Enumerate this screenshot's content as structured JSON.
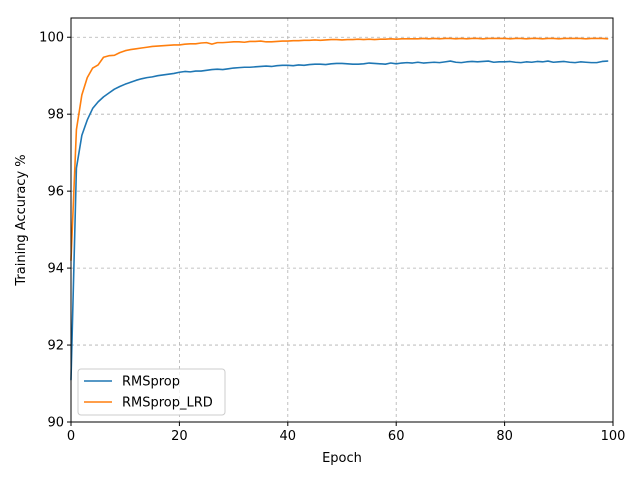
{
  "chart_data": {
    "type": "line",
    "title": "",
    "xlabel": "Epoch",
    "ylabel": "Training Accuracy %",
    "xlim": [
      0,
      100
    ],
    "ylim": [
      90,
      100.5
    ],
    "xticks": [
      0,
      20,
      40,
      60,
      80,
      100
    ],
    "yticks": [
      90,
      92,
      94,
      96,
      98,
      100
    ],
    "grid": true,
    "legend_position": "lower-left",
    "series": [
      {
        "name": "RMSprop",
        "color": "#1f77b4",
        "x": [
          0,
          1,
          2,
          3,
          4,
          5,
          6,
          7,
          8,
          9,
          10,
          11,
          12,
          13,
          14,
          15,
          16,
          17,
          18,
          19,
          20,
          21,
          22,
          23,
          24,
          25,
          26,
          27,
          28,
          29,
          30,
          31,
          32,
          33,
          34,
          35,
          36,
          37,
          38,
          39,
          40,
          41,
          42,
          43,
          44,
          45,
          46,
          47,
          48,
          49,
          50,
          51,
          52,
          53,
          54,
          55,
          56,
          57,
          58,
          59,
          60,
          61,
          62,
          63,
          64,
          65,
          66,
          67,
          68,
          69,
          70,
          71,
          72,
          73,
          74,
          75,
          76,
          77,
          78,
          79,
          80,
          81,
          82,
          83,
          84,
          85,
          86,
          87,
          88,
          89,
          90,
          91,
          92,
          93,
          94,
          95,
          96,
          97,
          98,
          99
        ],
        "y": [
          91.1,
          96.6,
          97.45,
          97.85,
          98.15,
          98.32,
          98.45,
          98.55,
          98.65,
          98.72,
          98.78,
          98.83,
          98.88,
          98.92,
          98.95,
          98.97,
          99.0,
          99.02,
          99.04,
          99.06,
          99.09,
          99.11,
          99.1,
          99.12,
          99.12,
          99.14,
          99.16,
          99.17,
          99.16,
          99.18,
          99.2,
          99.21,
          99.22,
          99.22,
          99.23,
          99.24,
          99.25,
          99.24,
          99.26,
          99.27,
          99.27,
          99.26,
          99.28,
          99.27,
          99.29,
          99.3,
          99.3,
          99.29,
          99.31,
          99.32,
          99.32,
          99.31,
          99.3,
          99.3,
          99.31,
          99.33,
          99.32,
          99.31,
          99.3,
          99.33,
          99.31,
          99.33,
          99.34,
          99.33,
          99.35,
          99.33,
          99.34,
          99.35,
          99.34,
          99.36,
          99.38,
          99.35,
          99.34,
          99.36,
          99.37,
          99.36,
          99.37,
          99.38,
          99.35,
          99.36,
          99.36,
          99.37,
          99.35,
          99.34,
          99.36,
          99.35,
          99.37,
          99.36,
          99.38,
          99.35,
          99.36,
          99.37,
          99.35,
          99.34,
          99.36,
          99.35,
          99.34,
          99.34,
          99.37,
          99.38
        ]
      },
      {
        "name": "RMSprop_LRD",
        "color": "#ff7f0e",
        "x": [
          0,
          1,
          2,
          3,
          4,
          5,
          6,
          7,
          8,
          9,
          10,
          11,
          12,
          13,
          14,
          15,
          16,
          17,
          18,
          19,
          20,
          21,
          22,
          23,
          24,
          25,
          26,
          27,
          28,
          29,
          30,
          31,
          32,
          33,
          34,
          35,
          36,
          37,
          38,
          39,
          40,
          41,
          42,
          43,
          44,
          45,
          46,
          47,
          48,
          49,
          50,
          51,
          52,
          53,
          54,
          55,
          56,
          57,
          58,
          59,
          60,
          61,
          62,
          63,
          64,
          65,
          66,
          67,
          68,
          69,
          70,
          71,
          72,
          73,
          74,
          75,
          76,
          77,
          78,
          79,
          80,
          81,
          82,
          83,
          84,
          85,
          86,
          87,
          88,
          89,
          90,
          91,
          92,
          93,
          94,
          95,
          96,
          97,
          98,
          99
        ],
        "y": [
          94.2,
          97.6,
          98.5,
          98.95,
          99.2,
          99.28,
          99.48,
          99.52,
          99.53,
          99.6,
          99.65,
          99.68,
          99.7,
          99.72,
          99.74,
          99.76,
          99.77,
          99.78,
          99.79,
          99.8,
          99.8,
          99.82,
          99.83,
          99.83,
          99.85,
          99.86,
          99.82,
          99.86,
          99.86,
          99.87,
          99.88,
          99.88,
          99.87,
          99.89,
          99.89,
          99.9,
          99.88,
          99.88,
          99.89,
          99.9,
          99.9,
          99.91,
          99.91,
          99.92,
          99.92,
          99.93,
          99.92,
          99.93,
          99.94,
          99.94,
          99.93,
          99.94,
          99.94,
          99.95,
          99.94,
          99.95,
          99.94,
          99.95,
          99.95,
          99.96,
          99.95,
          99.96,
          99.96,
          99.96,
          99.96,
          99.97,
          99.96,
          99.97,
          99.96,
          99.97,
          99.97,
          99.96,
          99.97,
          99.96,
          99.97,
          99.97,
          99.96,
          99.97,
          99.97,
          99.97,
          99.97,
          99.96,
          99.97,
          99.97,
          99.96,
          99.97,
          99.97,
          99.96,
          99.97,
          99.97,
          99.96,
          99.97,
          99.97,
          99.97,
          99.97,
          99.96,
          99.97,
          99.97,
          99.97,
          99.96
        ]
      }
    ]
  }
}
